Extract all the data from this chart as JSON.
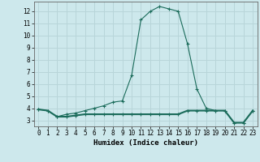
{
  "xlabel": "Humidex (Indice chaleur)",
  "background_color": "#cde8ec",
  "grid_color": "#b8d5d9",
  "line_color": "#1a6b5a",
  "xlim": [
    -0.5,
    23.5
  ],
  "ylim": [
    2.5,
    12.8
  ],
  "xticks": [
    0,
    1,
    2,
    3,
    4,
    5,
    6,
    7,
    8,
    9,
    10,
    11,
    12,
    13,
    14,
    15,
    16,
    17,
    18,
    19,
    20,
    21,
    22,
    23
  ],
  "yticks": [
    3,
    4,
    5,
    6,
    7,
    8,
    9,
    10,
    11,
    12
  ],
  "curve1_x": [
    0,
    1,
    2,
    3,
    4,
    5,
    6,
    7,
    8,
    9,
    10,
    11,
    12,
    13,
    14,
    15,
    16,
    17,
    18,
    19,
    20,
    21,
    22,
    23
  ],
  "curve1_y": [
    3.9,
    3.8,
    3.3,
    3.5,
    3.6,
    3.8,
    4.0,
    4.2,
    4.5,
    4.6,
    6.7,
    11.3,
    12.0,
    12.4,
    12.2,
    12.0,
    9.3,
    5.6,
    4.0,
    3.8,
    3.8,
    2.8,
    2.8,
    3.8
  ],
  "curve2_x": [
    0,
    1,
    2,
    3,
    4,
    5,
    6,
    7,
    8,
    9,
    10,
    11,
    12,
    13,
    14,
    15,
    16,
    17,
    18,
    19,
    20,
    21,
    22,
    23
  ],
  "curve2_y": [
    3.9,
    3.8,
    3.3,
    3.3,
    3.4,
    3.5,
    3.5,
    3.5,
    3.5,
    3.5,
    3.5,
    3.5,
    3.5,
    3.5,
    3.5,
    3.5,
    3.8,
    3.8,
    3.8,
    3.8,
    3.8,
    2.8,
    2.8,
    3.8
  ],
  "tick_fontsize": 5.5,
  "xlabel_fontsize": 6.5
}
